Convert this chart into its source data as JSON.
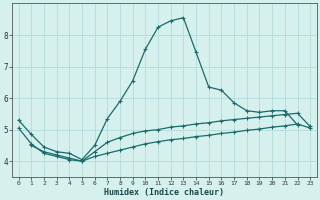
{
  "xlabel": "Humidex (Indice chaleur)",
  "bg_color": "#d6f0ee",
  "grid_color": "#b8dedd",
  "line_color": "#1a6b6b",
  "plot_bg": "#d6f0ee",
  "x_min": -0.5,
  "x_max": 23.5,
  "y_min": 3.5,
  "y_max": 9.0,
  "yticks": [
    4,
    5,
    6,
    7,
    8
  ],
  "xticks": [
    0,
    1,
    2,
    3,
    4,
    5,
    6,
    7,
    8,
    9,
    10,
    11,
    12,
    13,
    14,
    15,
    16,
    17,
    18,
    19,
    20,
    21,
    22,
    23
  ],
  "series_max_x": [
    0,
    1,
    2,
    3,
    4,
    5,
    6,
    7,
    8,
    9,
    10,
    11,
    12,
    13,
    14,
    15,
    16,
    17,
    18,
    19,
    20,
    21,
    22
  ],
  "series_max_y": [
    5.3,
    4.85,
    4.45,
    4.3,
    4.25,
    4.05,
    4.5,
    5.35,
    5.9,
    6.55,
    7.55,
    8.25,
    8.45,
    8.55,
    7.45,
    6.35,
    6.25,
    5.85,
    5.6,
    5.55,
    5.6,
    5.6,
    5.15
  ],
  "series_mid_x": [
    0,
    1,
    2,
    3,
    4,
    5,
    6,
    7,
    8,
    9,
    10,
    11,
    12,
    13,
    14,
    15,
    16,
    17,
    18,
    19,
    20,
    21,
    22,
    23
  ],
  "series_mid_y": [
    5.05,
    4.55,
    4.25,
    4.15,
    4.05,
    4.0,
    4.3,
    4.6,
    4.75,
    4.88,
    4.96,
    5.0,
    5.08,
    5.12,
    5.18,
    5.22,
    5.28,
    5.32,
    5.36,
    5.4,
    5.44,
    5.48,
    5.52,
    5.1
  ],
  "series_min_x": [
    1,
    2,
    3,
    4,
    5,
    6,
    7,
    8,
    9,
    10,
    11,
    12,
    13,
    14,
    15,
    16,
    17,
    18,
    19,
    20,
    21,
    22,
    23
  ],
  "series_min_y": [
    4.5,
    4.3,
    4.2,
    4.1,
    4.0,
    4.15,
    4.25,
    4.35,
    4.45,
    4.55,
    4.62,
    4.68,
    4.72,
    4.78,
    4.82,
    4.88,
    4.92,
    4.98,
    5.02,
    5.08,
    5.12,
    5.18,
    5.05
  ]
}
